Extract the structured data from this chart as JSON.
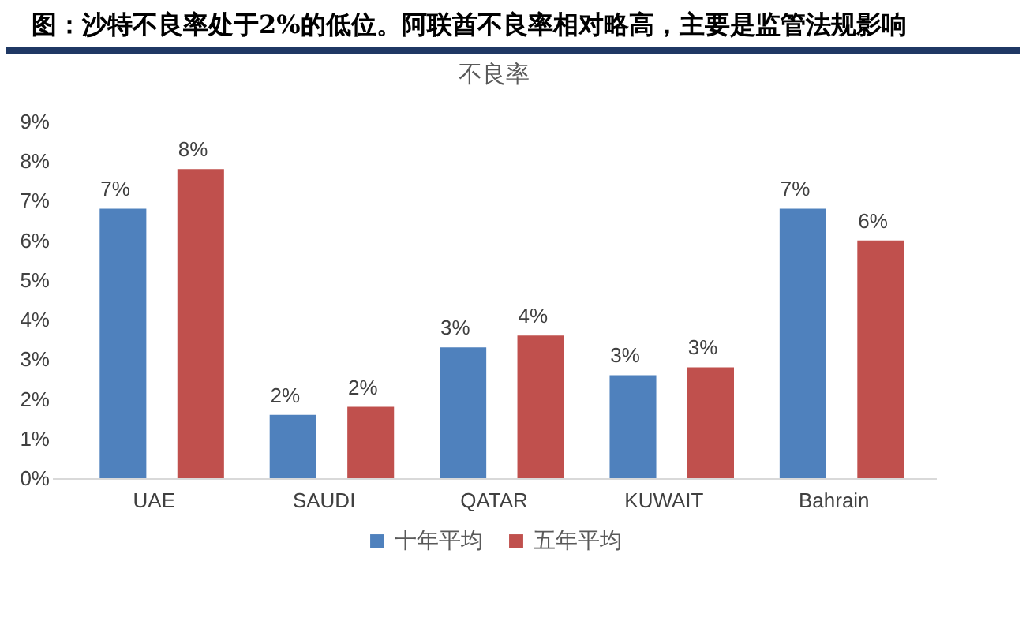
{
  "chart_data": {
    "type": "bar",
    "title": "图：沙特不良率处于2%的低位。阿联酋不良率相对略高，主要是监管法规影响",
    "subtitle": "不良率",
    "categories": [
      "UAE",
      "SAUDI",
      "QATAR",
      "KUWAIT",
      "Bahrain"
    ],
    "series": [
      {
        "name": "十年平均",
        "color": "#4f81bd",
        "values": [
          6.8,
          1.6,
          3.3,
          2.6,
          6.8
        ],
        "value_labels": [
          "7%",
          "2%",
          "3%",
          "3%",
          "7%"
        ]
      },
      {
        "name": "五年平均",
        "color": "#c0504d",
        "values": [
          7.8,
          1.8,
          3.6,
          2.8,
          6.0
        ],
        "value_labels": [
          "8%",
          "2%",
          "4%",
          "3%",
          "6%"
        ]
      }
    ],
    "ylim": [
      0,
      9
    ],
    "yticks": [
      {
        "value": 0,
        "label": "0%"
      },
      {
        "value": 1,
        "label": "1%"
      },
      {
        "value": 2,
        "label": "2%"
      },
      {
        "value": 3,
        "label": "3%"
      },
      {
        "value": 4,
        "label": "4%"
      },
      {
        "value": 5,
        "label": "5%"
      },
      {
        "value": 6,
        "label": "6%"
      },
      {
        "value": 7,
        "label": "7%"
      },
      {
        "value": 8,
        "label": "8%"
      },
      {
        "value": 9,
        "label": "9%"
      }
    ],
    "grid": false,
    "legend": "bottom"
  }
}
